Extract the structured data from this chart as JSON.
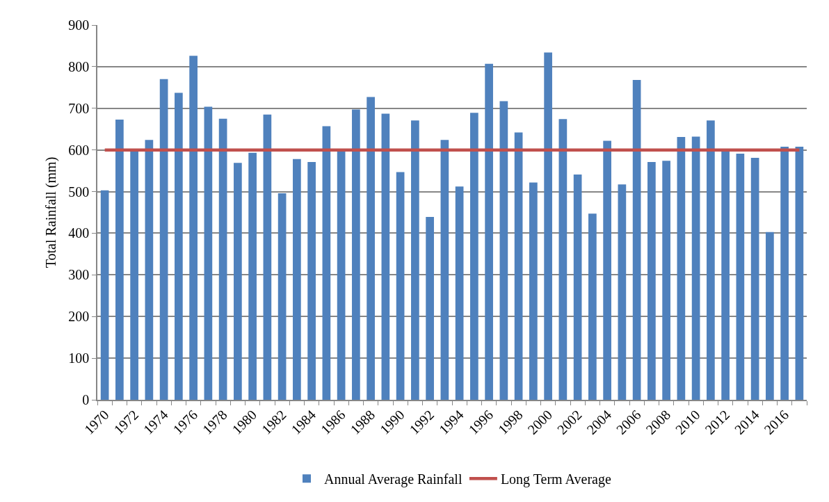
{
  "chart_data": {
    "type": "bar",
    "categories": [
      "1970",
      null,
      "1972",
      null,
      "1974",
      null,
      "1976",
      null,
      "1978",
      null,
      "1980",
      null,
      "1982",
      null,
      "1984",
      null,
      "1986",
      null,
      "1988",
      null,
      "1990",
      null,
      "1992",
      null,
      "1994",
      null,
      "1996",
      null,
      "1998",
      null,
      "2000",
      null,
      "2002",
      null,
      "2004",
      null,
      "2006",
      null,
      "2008",
      null,
      "2010",
      null,
      "2012",
      null,
      "2014",
      null,
      "2016",
      null
    ],
    "series": [
      {
        "name": "Annual Average Rainfall",
        "color": "#4f81bd",
        "values": [
          503,
          673,
          597,
          624,
          770,
          737,
          826,
          704,
          675,
          569,
          593,
          685,
          496,
          578,
          571,
          657,
          596,
          697,
          727,
          687,
          547,
          671,
          439,
          624,
          512,
          689,
          807,
          717,
          642,
          522,
          834,
          674,
          541,
          447,
          622,
          517,
          768,
          571,
          574,
          631,
          632,
          671,
          597,
          591,
          581,
          403,
          608,
          608
        ]
      }
    ],
    "ylabel": "Total Rainfall (mm)",
    "ylim": [
      0,
      900
    ],
    "yticks": [
      0,
      100,
      200,
      300,
      400,
      500,
      600,
      700,
      800,
      900
    ],
    "grid": "y",
    "legend": "bottom",
    "ref_lines": [
      {
        "axis": "y",
        "value": 600,
        "label": "Long Term Average",
        "color": "#c0504d"
      }
    ]
  }
}
